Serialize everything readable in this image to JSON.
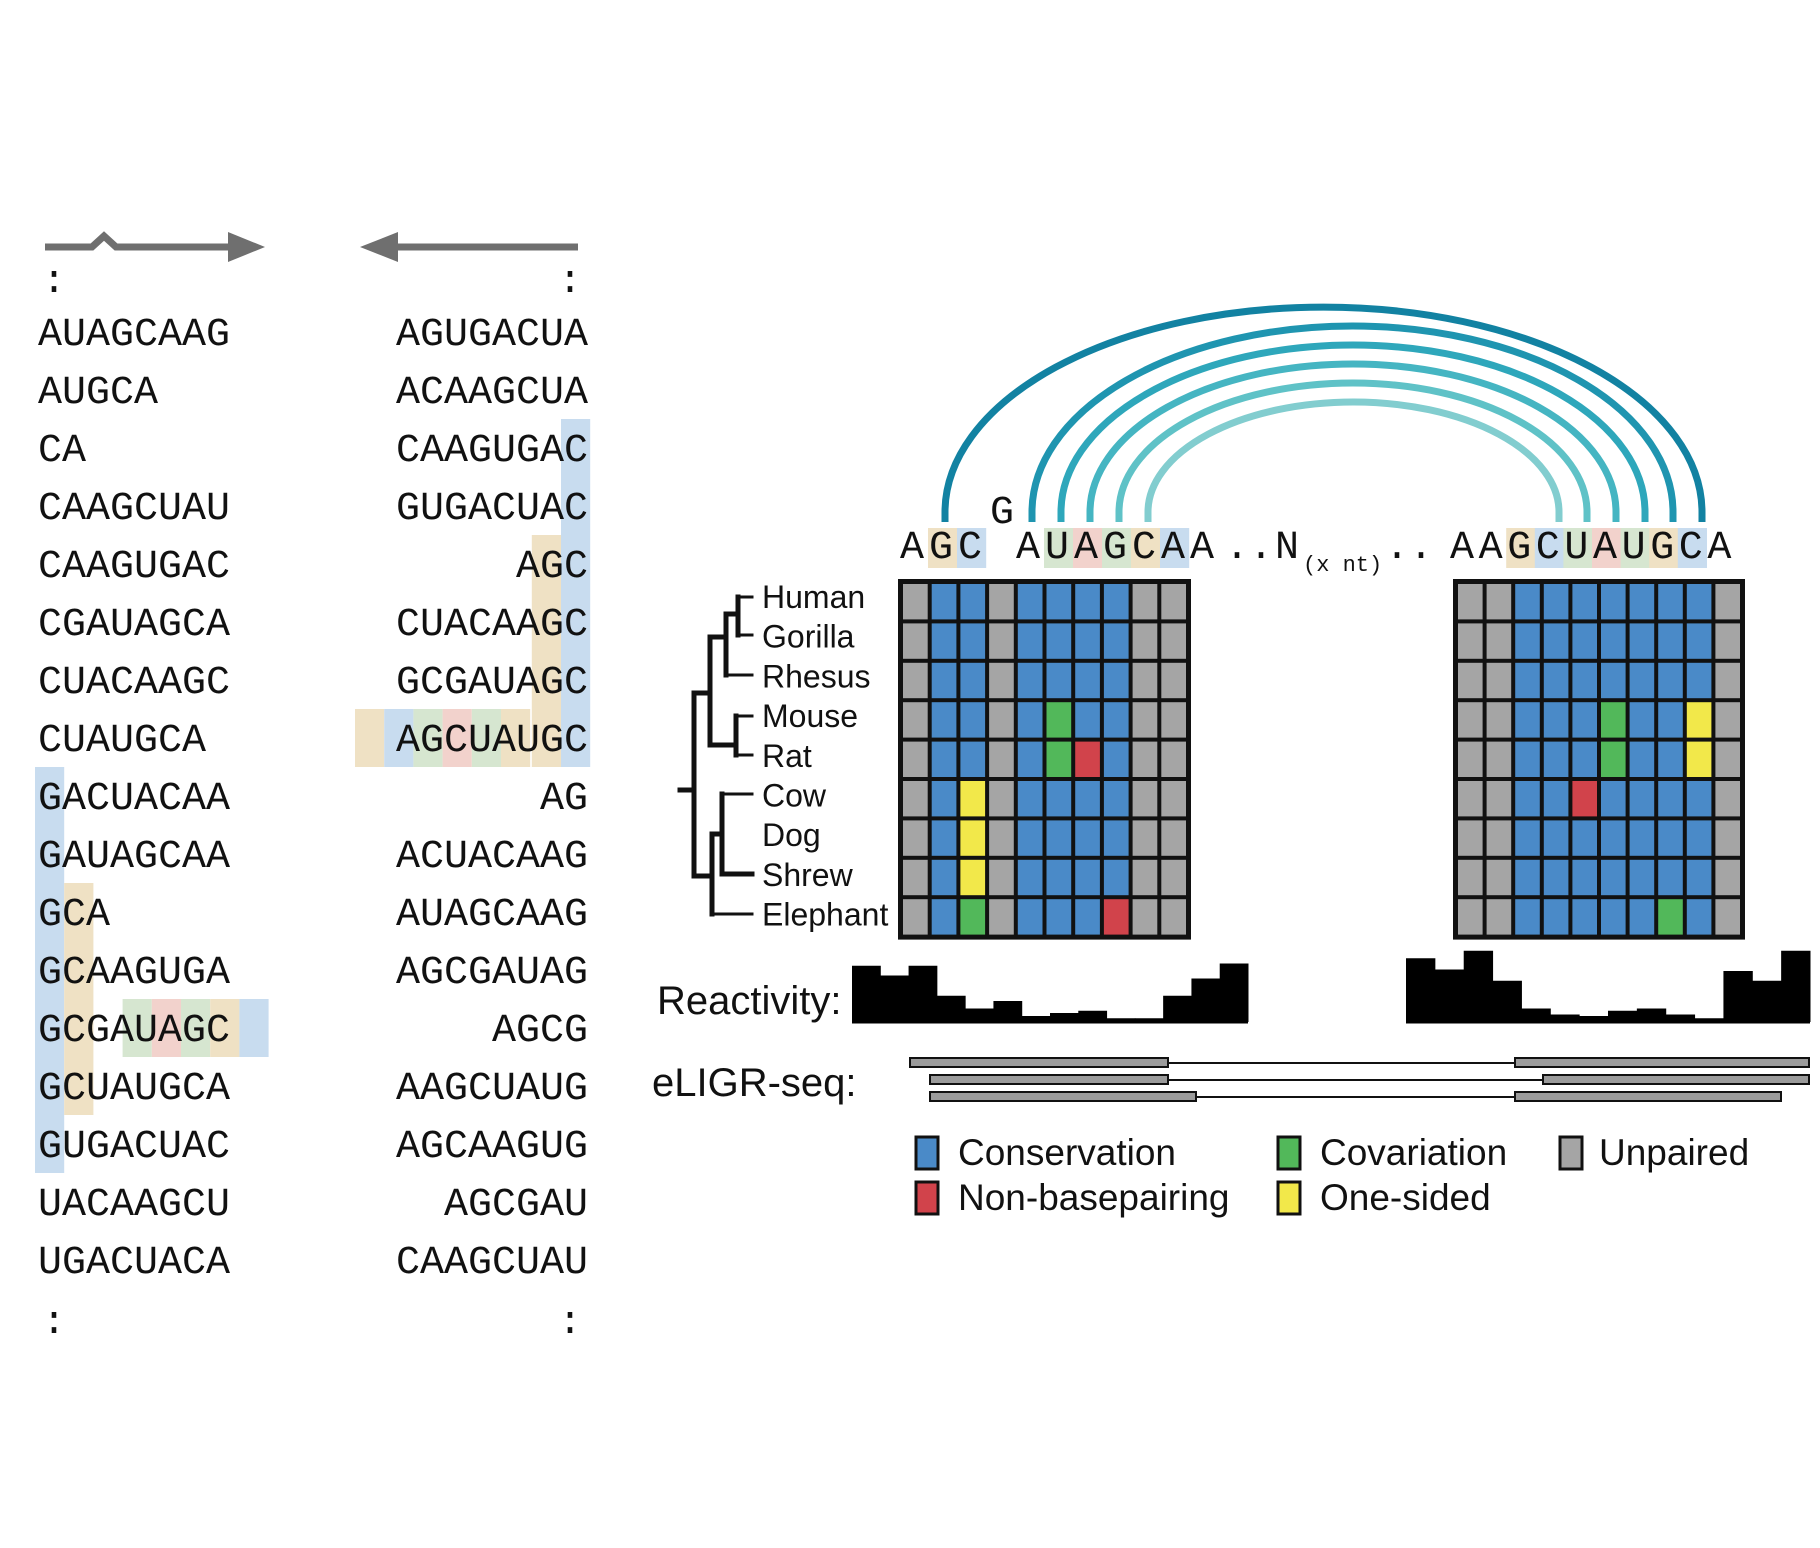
{
  "left_panel": {
    "forward_column": [
      "AUAGCAAG",
      "AUGCA",
      "CA",
      "CAAGCUAU",
      "CAAGUGAC",
      "CGAUAGCA",
      "CUACAAGC",
      "CUAUGCA",
      "GACUACAA",
      "GAUAGCAA",
      "GCA",
      "GCAAGUGA",
      "GCGAUAGC",
      "GCUAUGCA",
      "GUGACUAC",
      "UACAAGCU",
      "UGACUACA"
    ],
    "reverse_column": [
      "AGUGACUA",
      "ACAAGCUA",
      "CAAGUGAC",
      "GUGACUAC",
      "AGC",
      "CUACAAGC",
      "GCGAUAGC",
      "AGCUAUGC",
      "AG",
      "ACUACAAG",
      "AUAGCAAG",
      "AGCGAUAG",
      "AGCG",
      "AAGCUAUG",
      "AGCAAGUG",
      "AGCGAU",
      "CAAGCUAU"
    ],
    "ellipsis": ":"
  },
  "structure": {
    "left_seq": [
      "A",
      "G",
      "C",
      "A",
      "U",
      "A",
      "G",
      "C",
      "A",
      "A"
    ],
    "bulge": "G",
    "dots1": "..",
    "n_letter": "N",
    "n_sub": "(x nt)",
    "dots2": "..",
    "right_seq": [
      "A",
      "A",
      "G",
      "C",
      "U",
      "A",
      "U",
      "G",
      "C",
      "A"
    ],
    "left_colors": [
      null,
      "tan",
      "blue",
      null,
      "green",
      "red",
      "green",
      "tan",
      "blue",
      null
    ],
    "right_colors": [
      null,
      null,
      "tan",
      "blue",
      "green",
      "red",
      "green",
      "tan",
      "blue",
      null
    ],
    "arc_colors": [
      "#1282a2",
      "#1f95b0",
      "#2ea7bb",
      "#45b5c2",
      "#5fc2c7",
      "#82cdcf"
    ]
  },
  "species": [
    "Human",
    "Gorilla",
    "Rhesus",
    "Mouse",
    "Rat",
    "Cow",
    "Dog",
    "Shrew",
    "Elephant"
  ],
  "grid_left": [
    "UCCUCCCCUU",
    "UCCUCCCCUU",
    "UCCUCCCCUU",
    "UCCUCVCCUU",
    "UCCUCVNCUU",
    "UCOUCCCCUU",
    "UCOUCCCCUU",
    "UCOUCCCCUU",
    "UCVUCCCNUU"
  ],
  "grid_right": [
    "UUCCCCCCCU",
    "UUCCCCCCCU",
    "UUCCCCCCCU",
    "UUCCCVCCOU",
    "UUCCCVCCOU",
    "UUCCNCCCCU",
    "UUCCCCCCCU",
    "UUCCCCCCCU",
    "UUCCCCCVCU"
  ],
  "reactivity": {
    "label": "Reactivity:",
    "left": [
      0.75,
      0.62,
      0.75,
      0.35,
      0.18,
      0.28,
      0.08,
      0.12,
      0.15,
      0.05,
      0.05,
      0.35,
      0.58,
      0.78
    ],
    "right": [
      0.85,
      0.7,
      0.95,
      0.55,
      0.18,
      0.1,
      0.08,
      0.15,
      0.18,
      0.1,
      0.05,
      0.68,
      0.55,
      0.95
    ]
  },
  "eligr": {
    "label": "eLIGR-seq:"
  },
  "legend": {
    "conservation": "Conservation",
    "covariation": "Covariation",
    "unpaired": "Unpaired",
    "nonbasepairing": "Non-basepairing",
    "onesided": "One-sided"
  },
  "colors": {
    "conservation": "#4a8ac8",
    "covariation": "#52b85a",
    "unpaired": "#a5a5a5",
    "nonbasepairing": "#d1434b",
    "onesided": "#f2e84a",
    "hl_blue": "#c8dcef",
    "hl_tan": "#efe1c4",
    "hl_green": "#d6e6d0",
    "hl_red": "#f2d2cc",
    "arrow_gray": "#6f6f6f"
  }
}
